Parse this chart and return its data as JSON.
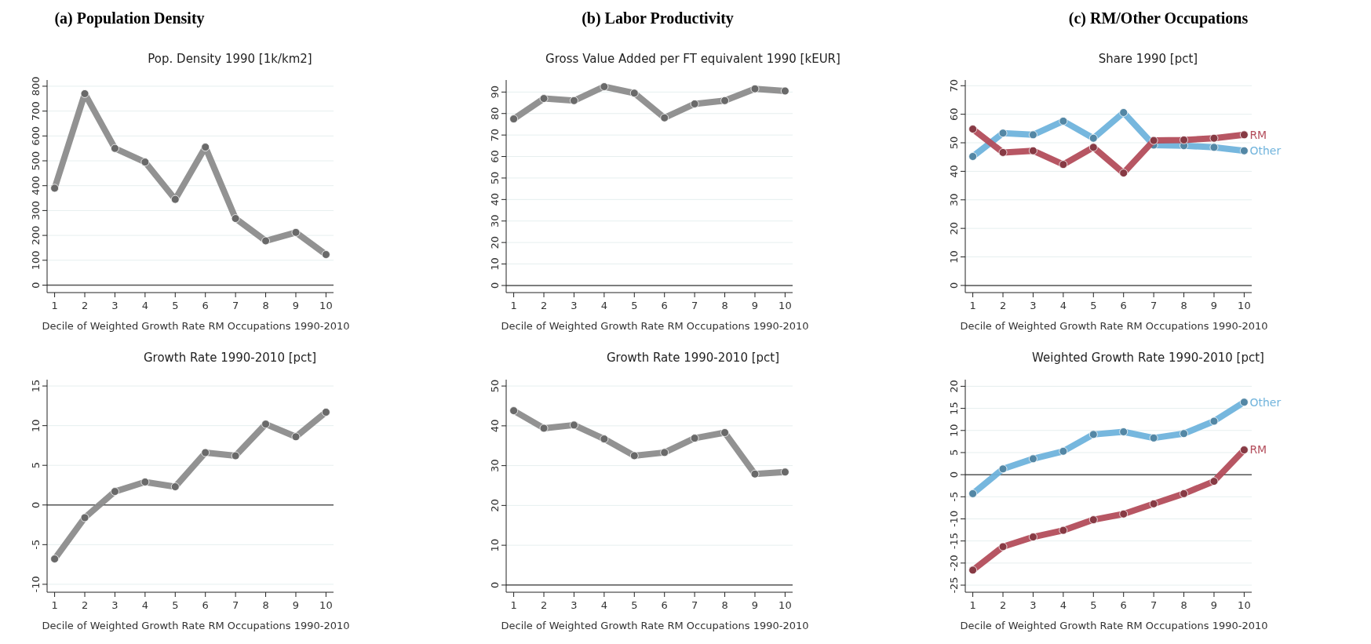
{
  "chart_data": [
    {
      "type": "line",
      "title": "(a) Population Density",
      "subtitle": "Pop. Density 1990 [1k/km2]",
      "xlabel": "Decile of Weighted Growth Rate RM Occupations 1990-2010",
      "x": [
        1,
        2,
        3,
        4,
        5,
        6,
        7,
        8,
        9,
        10
      ],
      "xlim": [
        0.75,
        10.25
      ],
      "xticks": [
        1,
        2,
        3,
        4,
        5,
        6,
        7,
        8,
        9,
        10
      ],
      "ylim": [
        -30,
        825
      ],
      "yticks": [
        0,
        100,
        200,
        300,
        400,
        500,
        600,
        700,
        800
      ],
      "grid": "y",
      "marker": "circle",
      "legend": false,
      "ref_lines": [
        {
          "axis": "y",
          "value": 0,
          "color": "#555555"
        }
      ],
      "series": [
        {
          "color": "#8c8c8c",
          "values": [
            390,
            770,
            550,
            495,
            345,
            555,
            268,
            178,
            212,
            123
          ]
        }
      ]
    },
    {
      "type": "line",
      "title": "(b) Labor Productivity",
      "subtitle": "Gross Value Added per FT equivalent 1990 [kEUR]",
      "xlabel": "Decile of Weighted Growth Rate RM Occupations 1990-2010",
      "x": [
        1,
        2,
        3,
        4,
        5,
        6,
        7,
        8,
        9,
        10
      ],
      "xlim": [
        0.75,
        10.25
      ],
      "xticks": [
        1,
        2,
        3,
        4,
        5,
        6,
        7,
        8,
        9,
        10
      ],
      "ylim": [
        -3.3,
        95.6
      ],
      "yticks": [
        0,
        10,
        20,
        30,
        40,
        50,
        60,
        70,
        80,
        90
      ],
      "grid": "y",
      "marker": "circle",
      "legend": false,
      "ref_lines": [
        {
          "axis": "y",
          "value": 0,
          "color": "#555555"
        }
      ],
      "series": [
        {
          "color": "#8c8c8c",
          "values": [
            77.5,
            87,
            86,
            92.5,
            89.5,
            78,
            84.5,
            86,
            91.5,
            90.5
          ]
        }
      ]
    },
    {
      "type": "line",
      "title": "(c) RM/Other Occupations",
      "subtitle": "Share 1990 [pct]",
      "xlabel": "Decile of Weighted Growth Rate RM Occupations 1990-2010",
      "x": [
        1,
        2,
        3,
        4,
        5,
        6,
        7,
        8,
        9,
        10
      ],
      "xlim": [
        0.75,
        10.25
      ],
      "xticks": [
        1,
        2,
        3,
        4,
        5,
        6,
        7,
        8,
        9,
        10
      ],
      "ylim": [
        -2.5,
        72
      ],
      "yticks": [
        0,
        10,
        20,
        30,
        40,
        50,
        60,
        70
      ],
      "grid": "y",
      "marker": "circle",
      "legend": false,
      "ref_lines": [
        {
          "axis": "y",
          "value": 0,
          "color": "#555555"
        }
      ],
      "series": [
        {
          "name": "Other",
          "color": "#6fb3dc",
          "values": [
            45.2,
            53.4,
            52.8,
            57.6,
            51.6,
            60.6,
            49.2,
            49,
            48.4,
            47.2
          ]
        },
        {
          "name": "RM",
          "color": "#b34d5b",
          "values": [
            54.8,
            46.6,
            47.2,
            42.4,
            48.4,
            39.4,
            50.8,
            51,
            51.6,
            52.8
          ]
        }
      ]
    },
    {
      "type": "line",
      "title": "Growth Rate 1990-2010 [pct]",
      "xlabel": "Decile of Weighted Growth Rate RM Occupations 1990-2010",
      "x": [
        1,
        2,
        3,
        4,
        5,
        6,
        7,
        8,
        9,
        10
      ],
      "xlim": [
        0.75,
        10.25
      ],
      "xticks": [
        1,
        2,
        3,
        4,
        5,
        6,
        7,
        8,
        9,
        10
      ],
      "ylim": [
        -11,
        15.8
      ],
      "yticks": [
        -10,
        -5,
        0,
        5,
        10,
        15
      ],
      "grid": "y",
      "marker": "circle",
      "legend": false,
      "ref_lines": [
        {
          "axis": "y",
          "value": 0,
          "color": "#555555"
        }
      ],
      "series": [
        {
          "color": "#8c8c8c",
          "values": [
            -6.8,
            -1.6,
            1.7,
            2.9,
            2.3,
            6.6,
            6.2,
            10.2,
            8.6,
            11.7
          ]
        }
      ]
    },
    {
      "type": "line",
      "title": "Growth Rate 1990-2010 [pct]",
      "xlabel": "Decile of Weighted Growth Rate RM Occupations 1990-2010",
      "x": [
        1,
        2,
        3,
        4,
        5,
        6,
        7,
        8,
        9,
        10
      ],
      "xlim": [
        0.75,
        10.25
      ],
      "xticks": [
        1,
        2,
        3,
        4,
        5,
        6,
        7,
        8,
        9,
        10
      ],
      "ylim": [
        -1.8,
        51.6
      ],
      "yticks": [
        0,
        10,
        20,
        30,
        40,
        50
      ],
      "grid": "y",
      "marker": "circle",
      "legend": false,
      "ref_lines": [
        {
          "axis": "y",
          "value": 0,
          "color": "#555555"
        }
      ],
      "series": [
        {
          "color": "#8c8c8c",
          "values": [
            43.8,
            39.4,
            40.2,
            36.7,
            32.5,
            33.3,
            36.9,
            38.3,
            27.9,
            28.4
          ]
        }
      ]
    },
    {
      "type": "line",
      "title": "Weighted Growth Rate 1990-2010 [pct]",
      "xlabel": "Decile of Weighted Growth Rate RM Occupations 1990-2010",
      "x": [
        1,
        2,
        3,
        4,
        5,
        6,
        7,
        8,
        9,
        10
      ],
      "xlim": [
        0.75,
        10.25
      ],
      "xticks": [
        1,
        2,
        3,
        4,
        5,
        6,
        7,
        8,
        9,
        10
      ],
      "ylim": [
        -26.6,
        21.5
      ],
      "yticks": [
        -25,
        -20,
        -15,
        -10,
        -5,
        0,
        5,
        10,
        15,
        20
      ],
      "grid": "y",
      "marker": "circle",
      "legend": false,
      "ref_lines": [
        {
          "axis": "y",
          "value": 0,
          "color": "#555555"
        }
      ],
      "series": [
        {
          "name": "Other",
          "color": "#6fb3dc",
          "values": [
            -4.3,
            1.3,
            3.6,
            5.3,
            9.1,
            9.7,
            8.3,
            9.3,
            12.1,
            16.4
          ]
        },
        {
          "name": "RM",
          "color": "#b34d5b",
          "values": [
            -21.6,
            -16.3,
            -14.1,
            -12.6,
            -10.2,
            -8.9,
            -6.6,
            -4.3,
            -1.5,
            5.6
          ]
        }
      ]
    }
  ]
}
